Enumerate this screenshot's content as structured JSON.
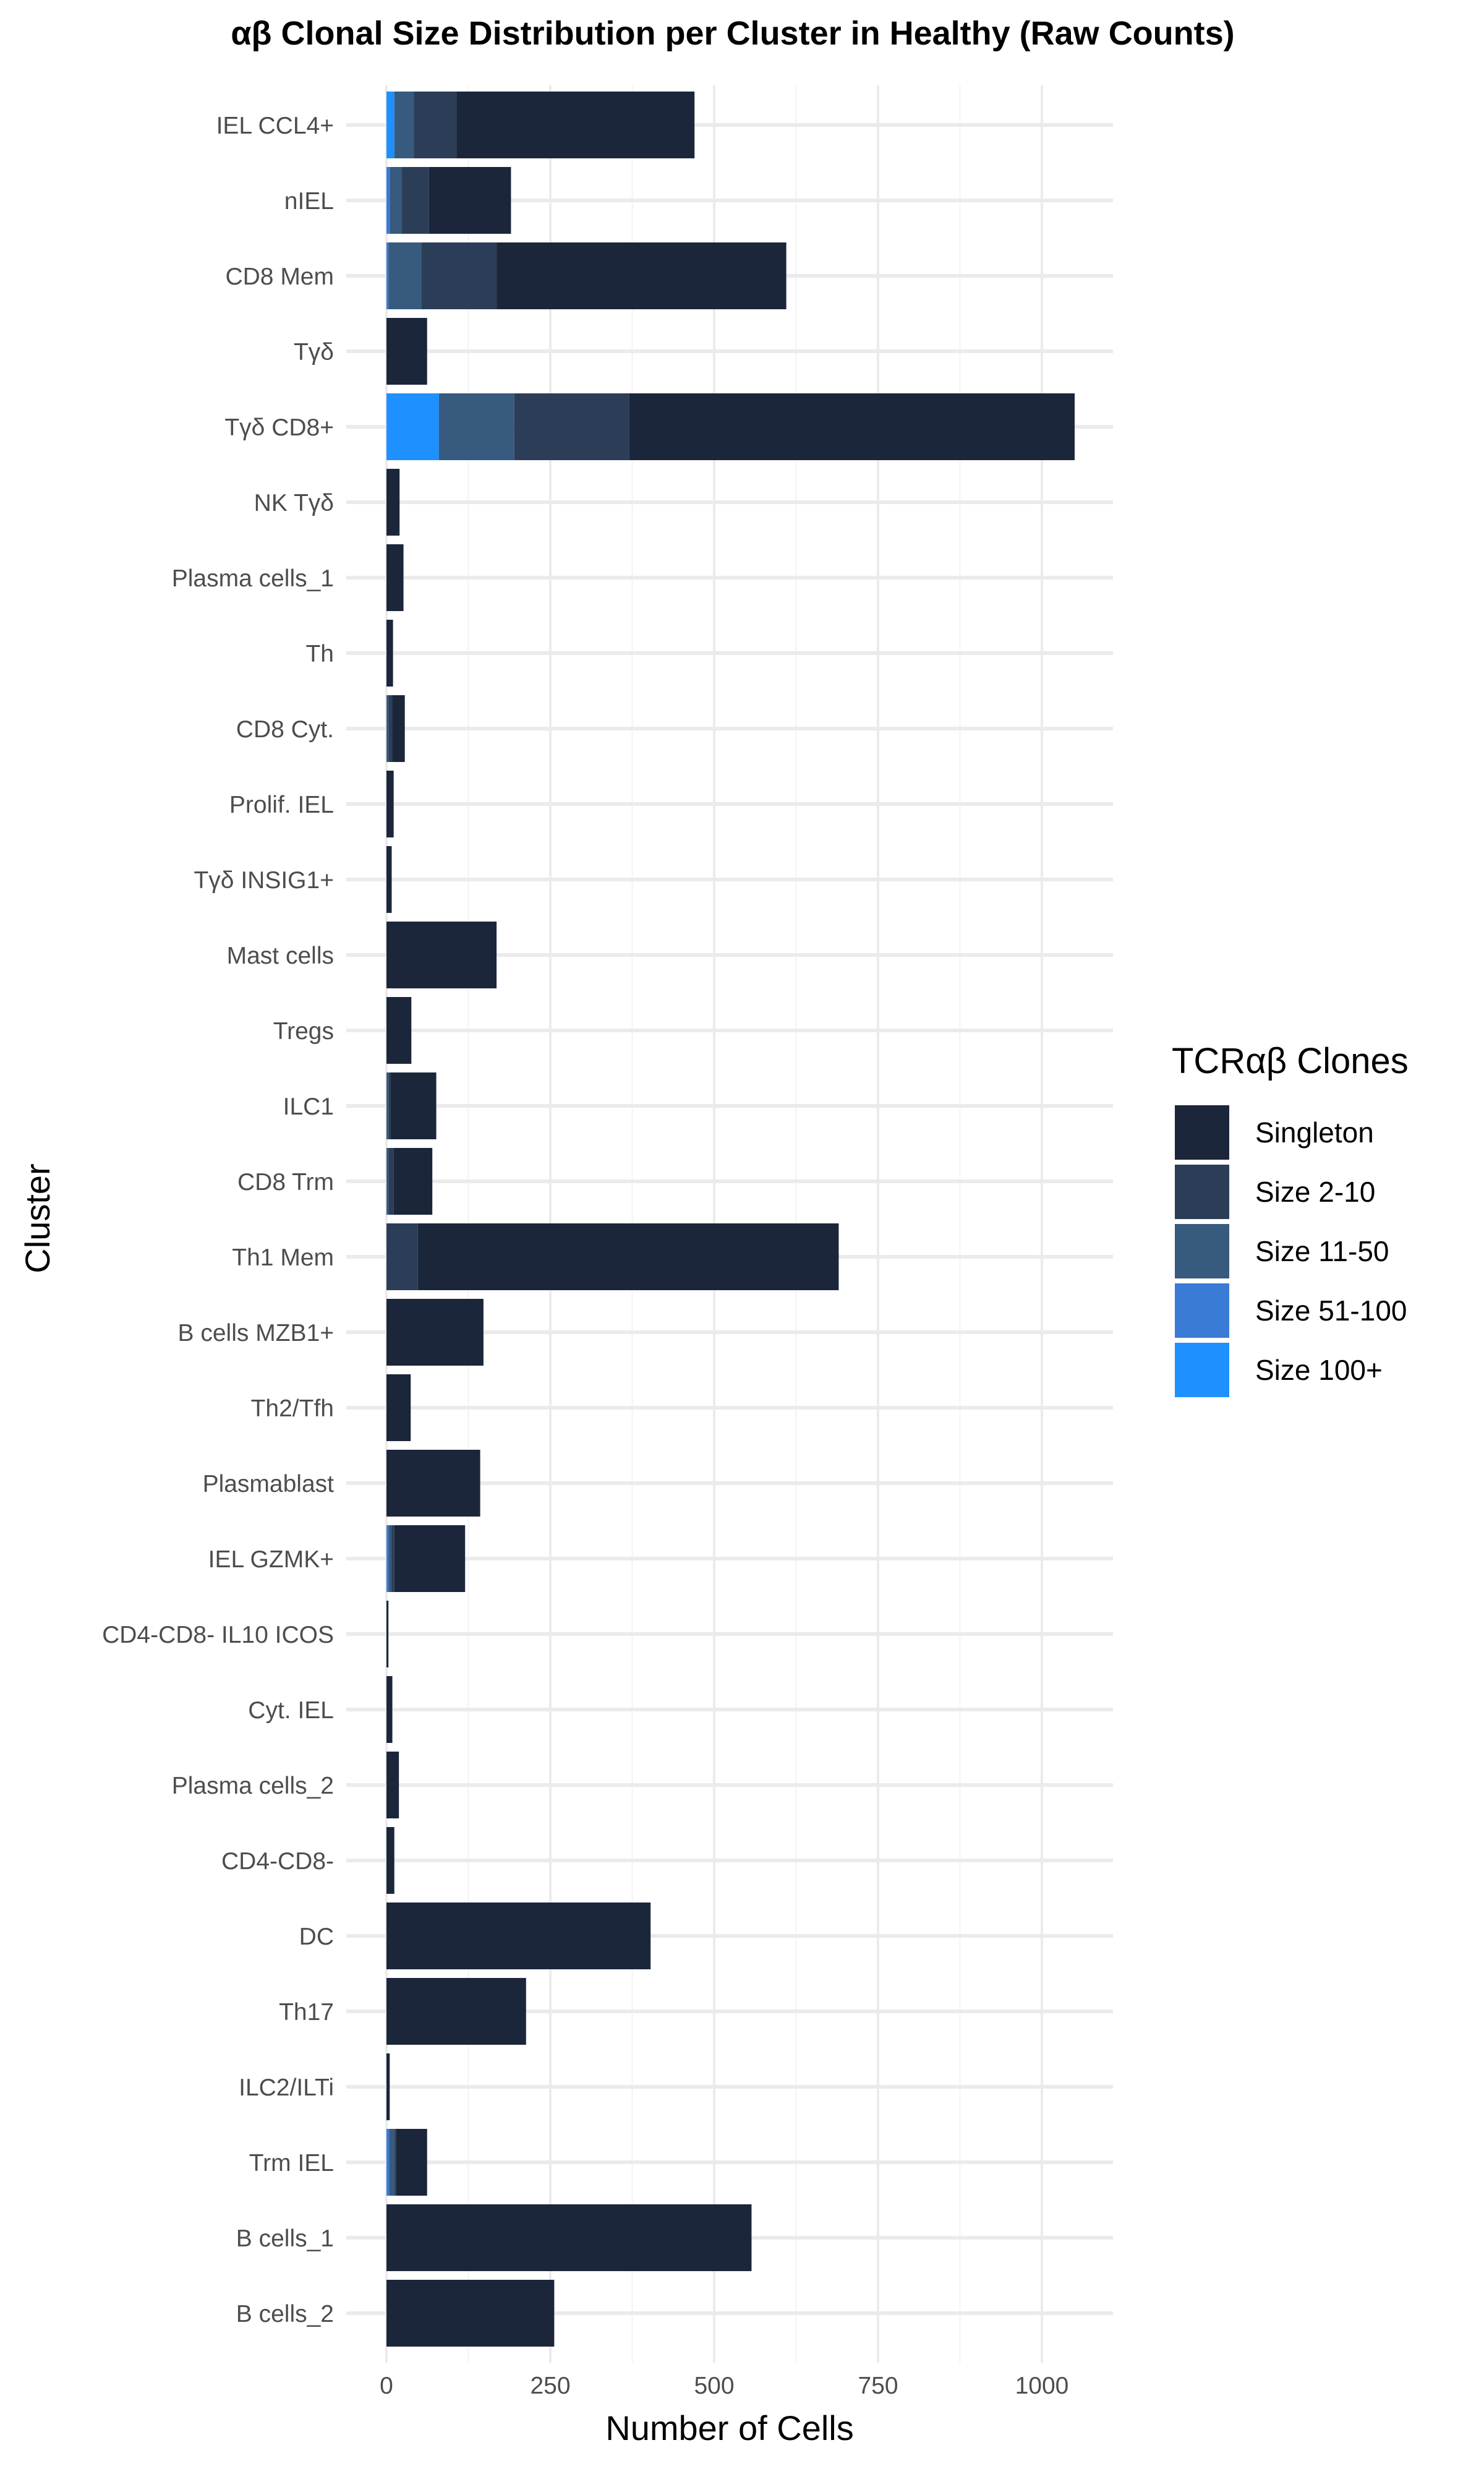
{
  "chart_data": {
    "type": "bar",
    "orientation": "horizontal",
    "stacked": true,
    "title": "αβ Clonal Size Distribution per Cluster in Healthy (Raw Counts)",
    "xlabel": "Number of Cells",
    "ylabel": "Cluster",
    "xlim": [
      0,
      1110
    ],
    "xticks": [
      0,
      250,
      500,
      750,
      1000
    ],
    "grid": true,
    "legend_position": "right",
    "legend_title": "TCRαβ Clones",
    "categories": [
      "IEL CCL4+",
      "nIEL",
      "CD8 Mem",
      "Tγδ",
      "Tγδ CD8+",
      "NK Tγδ",
      "Plasma cells_1",
      "Th",
      "CD8 Cyt.",
      "Prolif. IEL",
      "Tγδ INSIG1+",
      "Mast cells",
      "Tregs",
      "ILC1",
      "CD8 Trm",
      "Th1 Mem",
      "B cells MZB1+",
      "Th2/Tfh",
      "Plasmablast",
      "IEL GZMK+",
      "CD4-CD8- IL10 ICOS",
      "Cyt. IEL",
      "Plasma cells_2",
      "CD4-CD8-",
      "DC",
      "Th17",
      "ILC2/ILTi",
      "Trm IEL",
      "B cells_1",
      "B cells_2"
    ],
    "series": [
      {
        "name": "Size 100+",
        "color": "#1E90FF",
        "values": [
          12,
          0,
          0,
          0,
          80,
          0,
          0,
          0,
          0,
          0,
          0,
          0,
          0,
          0,
          0,
          0,
          0,
          0,
          0,
          0,
          0,
          0,
          0,
          0,
          0,
          0,
          0,
          0,
          0,
          0
        ]
      },
      {
        "name": "Size 51-100",
        "color": "#3A7BD5",
        "values": [
          0,
          5,
          3,
          0,
          0,
          0,
          0,
          0,
          0,
          0,
          0,
          0,
          0,
          0,
          0,
          0,
          0,
          0,
          0,
          3,
          0,
          0,
          0,
          0,
          0,
          0,
          0,
          4,
          0,
          0
        ]
      },
      {
        "name": "Size 11-50",
        "color": "#375A7F",
        "values": [
          30,
          18,
          50,
          0,
          115,
          0,
          0,
          0,
          3,
          0,
          0,
          0,
          0,
          3,
          3,
          0,
          0,
          0,
          0,
          5,
          0,
          0,
          0,
          0,
          0,
          0,
          0,
          8,
          0,
          0
        ]
      },
      {
        "name": "Size 2-10",
        "color": "#2C3E57",
        "values": [
          65,
          42,
          115,
          0,
          175,
          0,
          0,
          0,
          6,
          0,
          0,
          0,
          0,
          3,
          8,
          48,
          0,
          0,
          0,
          4,
          0,
          0,
          0,
          0,
          0,
          0,
          0,
          3,
          0,
          0
        ]
      },
      {
        "name": "Singleton",
        "color": "#1B263B",
        "values": [
          363,
          125,
          442,
          62,
          680,
          20,
          26,
          10,
          19,
          11,
          8,
          168,
          38,
          70,
          59,
          642,
          148,
          37,
          143,
          108,
          3,
          9,
          19,
          12,
          403,
          213,
          5,
          47,
          557,
          256
        ]
      }
    ],
    "legend_order": [
      "Singleton",
      "Size 2-10",
      "Size 11-50",
      "Size 51-100",
      "Size 100+"
    ]
  }
}
